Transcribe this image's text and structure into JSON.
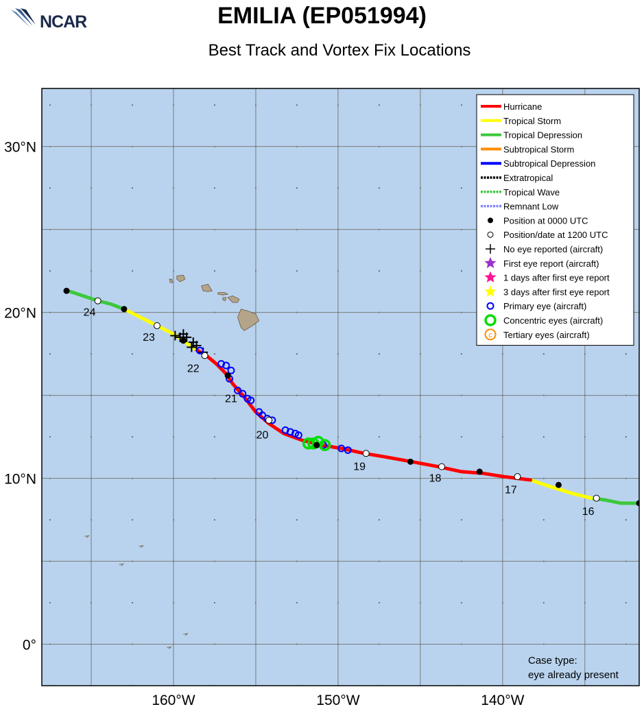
{
  "header": {
    "title": "EMILIA (EP051994)",
    "subtitle": "Best Track and Vortex Fix Locations",
    "logo_text": "NCAR"
  },
  "map": {
    "lon_range": [
      -168,
      -131.7
    ],
    "lat_range": [
      -2.5,
      33.5
    ],
    "ocean_color": "#b9d3ee",
    "land_color": "#b4a48a",
    "grid_color": "#7a7a7a",
    "y_ticks": [
      {
        "lat": 30,
        "label": "30°N"
      },
      {
        "lat": 20,
        "label": "20°N"
      },
      {
        "lat": 10,
        "label": "10°N"
      },
      {
        "lat": 0,
        "label": "0°"
      }
    ],
    "x_ticks": [
      {
        "lon": -160,
        "label": "160°W"
      },
      {
        "lon": -150,
        "label": "150°W"
      },
      {
        "lon": -140,
        "label": "140°W"
      }
    ],
    "grid_lons": [
      -165,
      -160,
      -155,
      -150,
      -145,
      -140,
      -135
    ],
    "grid_lats": [
      0,
      5,
      10,
      15,
      20,
      25,
      30
    ]
  },
  "track": {
    "segments": [
      {
        "status": "Tropical Depression",
        "color": "#3cc83c",
        "points": [
          [
            -131.7,
            8.5
          ],
          [
            -132.8,
            8.5
          ],
          [
            -133.8,
            8.7
          ],
          [
            -134.6,
            8.8
          ]
        ]
      },
      {
        "status": "Tropical Storm",
        "color": "#ffff00",
        "points": [
          [
            -134.6,
            8.8
          ],
          [
            -135.8,
            9.1
          ],
          [
            -137.1,
            9.5
          ],
          [
            -138.3,
            9.9
          ]
        ]
      },
      {
        "status": "Hurricane",
        "color": "#ff0000",
        "points": [
          [
            -138.3,
            9.9
          ],
          [
            -139.9,
            10.1
          ],
          [
            -141.2,
            10.3
          ],
          [
            -142.5,
            10.4
          ],
          [
            -143.9,
            10.7
          ],
          [
            -145.5,
            11.0
          ],
          [
            -147.2,
            11.3
          ],
          [
            -148.4,
            11.5
          ],
          [
            -149.8,
            11.8
          ],
          [
            -151.0,
            12.0
          ],
          [
            -152.2,
            12.3
          ],
          [
            -153.3,
            12.7
          ],
          [
            -154.2,
            13.3
          ],
          [
            -155.0,
            14.0
          ],
          [
            -155.7,
            14.9
          ],
          [
            -156.4,
            15.7
          ],
          [
            -156.8,
            16.3
          ],
          [
            -157.4,
            16.9
          ],
          [
            -158.0,
            17.4
          ],
          [
            -158.7,
            17.8
          ]
        ]
      },
      {
        "status": "Tropical Storm",
        "color": "#ffff00",
        "points": [
          [
            -158.7,
            17.8
          ],
          [
            -159.4,
            18.3
          ],
          [
            -160.2,
            18.8
          ],
          [
            -161.0,
            19.2
          ],
          [
            -162.0,
            19.7
          ],
          [
            -163.0,
            20.2
          ]
        ]
      },
      {
        "status": "Tropical Depression",
        "color": "#3cc83c",
        "points": [
          [
            -163.0,
            20.2
          ],
          [
            -163.8,
            20.5
          ],
          [
            -164.6,
            20.7
          ],
          [
            -165.5,
            21.0
          ],
          [
            -166.4,
            21.3
          ]
        ]
      }
    ],
    "positions_0000": [
      [
        -131.7,
        8.5
      ],
      [
        -136.6,
        9.6
      ],
      [
        -141.4,
        10.4
      ],
      [
        -145.6,
        11.0
      ],
      [
        -151.3,
        12.0
      ],
      [
        -156.7,
        16.2
      ],
      [
        -159.4,
        18.3
      ],
      [
        -163.0,
        20.2
      ],
      [
        -166.5,
        21.3
      ]
    ],
    "positions_1200": [
      [
        -134.3,
        8.8
      ],
      [
        -139.1,
        10.1
      ],
      [
        -143.7,
        10.7
      ],
      [
        -148.3,
        11.5
      ],
      [
        -154.2,
        13.5
      ],
      [
        -158.1,
        17.4
      ],
      [
        -161.0,
        19.2
      ],
      [
        -164.6,
        20.7
      ]
    ],
    "day_labels": [
      {
        "label": "16",
        "lon": -134.8,
        "lat": 7.8
      },
      {
        "label": "17",
        "lon": -139.5,
        "lat": 9.1
      },
      {
        "label": "18",
        "lon": -144.1,
        "lat": 9.8
      },
      {
        "label": "19",
        "lon": -148.7,
        "lat": 10.5
      },
      {
        "label": "20",
        "lon": -154.6,
        "lat": 12.4
      },
      {
        "label": "21",
        "lon": -156.5,
        "lat": 14.6
      },
      {
        "label": "22",
        "lon": -158.8,
        "lat": 16.4
      },
      {
        "label": "23",
        "lon": -161.5,
        "lat": 18.3
      },
      {
        "label": "24",
        "lon": -165.1,
        "lat": 19.8
      }
    ]
  },
  "fixes": {
    "no_eye_plus": [
      [
        -159.9,
        18.6
      ],
      [
        -159.6,
        18.5
      ],
      [
        -159.2,
        18.5
      ],
      [
        -158.8,
        18.2
      ],
      [
        -158.6,
        18.0
      ],
      [
        -158.2,
        17.6
      ],
      [
        -159.4,
        18.7
      ],
      [
        -158.9,
        17.9
      ]
    ],
    "primary_eye": [
      [
        -158.4,
        17.7
      ],
      [
        -157.1,
        16.9
      ],
      [
        -156.8,
        16.8
      ],
      [
        -156.5,
        16.5
      ],
      [
        -156.6,
        16.0
      ],
      [
        -156.1,
        15.3
      ],
      [
        -155.8,
        15.1
      ],
      [
        -155.5,
        14.8
      ],
      [
        -155.3,
        14.7
      ],
      [
        -154.8,
        14.0
      ],
      [
        -154.6,
        13.8
      ],
      [
        -154.3,
        13.6
      ],
      [
        -154.0,
        13.5
      ],
      [
        -153.2,
        12.9
      ],
      [
        -152.9,
        12.8
      ],
      [
        -152.6,
        12.7
      ],
      [
        -152.4,
        12.6
      ],
      [
        -150.9,
        12.0
      ],
      [
        -149.8,
        11.8
      ],
      [
        -149.4,
        11.7
      ]
    ],
    "concentric_eyes": [
      [
        -151.8,
        12.1
      ],
      [
        -151.5,
        12.1
      ],
      [
        -151.2,
        12.2
      ],
      [
        -150.8,
        12.0
      ]
    ]
  },
  "legend": {
    "items": [
      {
        "label": "Hurricane",
        "sym": "line",
        "color": "#ff0000"
      },
      {
        "label": "Tropical Storm",
        "sym": "line",
        "color": "#ffff00"
      },
      {
        "label": "Tropical Depression",
        "sym": "line",
        "color": "#3cc83c"
      },
      {
        "label": "Subtropical Storm",
        "sym": "line",
        "color": "#ff8c00"
      },
      {
        "label": "Subtropical Depression",
        "sym": "line",
        "color": "#0000ff"
      },
      {
        "label": "Extratropical",
        "sym": "dotline",
        "color": "#000000"
      },
      {
        "label": "Tropical Wave",
        "sym": "dotline",
        "color": "#3cc83c"
      },
      {
        "label": "Remnant Low",
        "sym": "dotline",
        "color": "#8080ff"
      },
      {
        "label": "Position at 0000 UTC",
        "sym": "filled-dot",
        "color": "#000000"
      },
      {
        "label": "Position/date at 1200 UTC",
        "sym": "open-dot",
        "color": "#000000"
      },
      {
        "label": "No eye reported (aircraft)",
        "sym": "plus",
        "color": "#000000"
      },
      {
        "label": "First eye report (aircraft)",
        "sym": "star",
        "color": "#9933cc"
      },
      {
        "label": "1 days after first eye report",
        "sym": "star",
        "color": "#ff1493"
      },
      {
        "label": "3 days after first eye report",
        "sym": "star",
        "color": "#ffff00"
      },
      {
        "label": "Primary eye (aircraft)",
        "sym": "ring",
        "color": "#0000ff"
      },
      {
        "label": "Concentric eyes (aircraft)",
        "sym": "thick-ring",
        "color": "#00dd00"
      },
      {
        "label": "Tertiary eyes (aircraft)",
        "sym": "c-ring",
        "color": "#ff8c00"
      }
    ]
  },
  "case_type": {
    "line1": "Case type:",
    "line2": "eye already present"
  }
}
